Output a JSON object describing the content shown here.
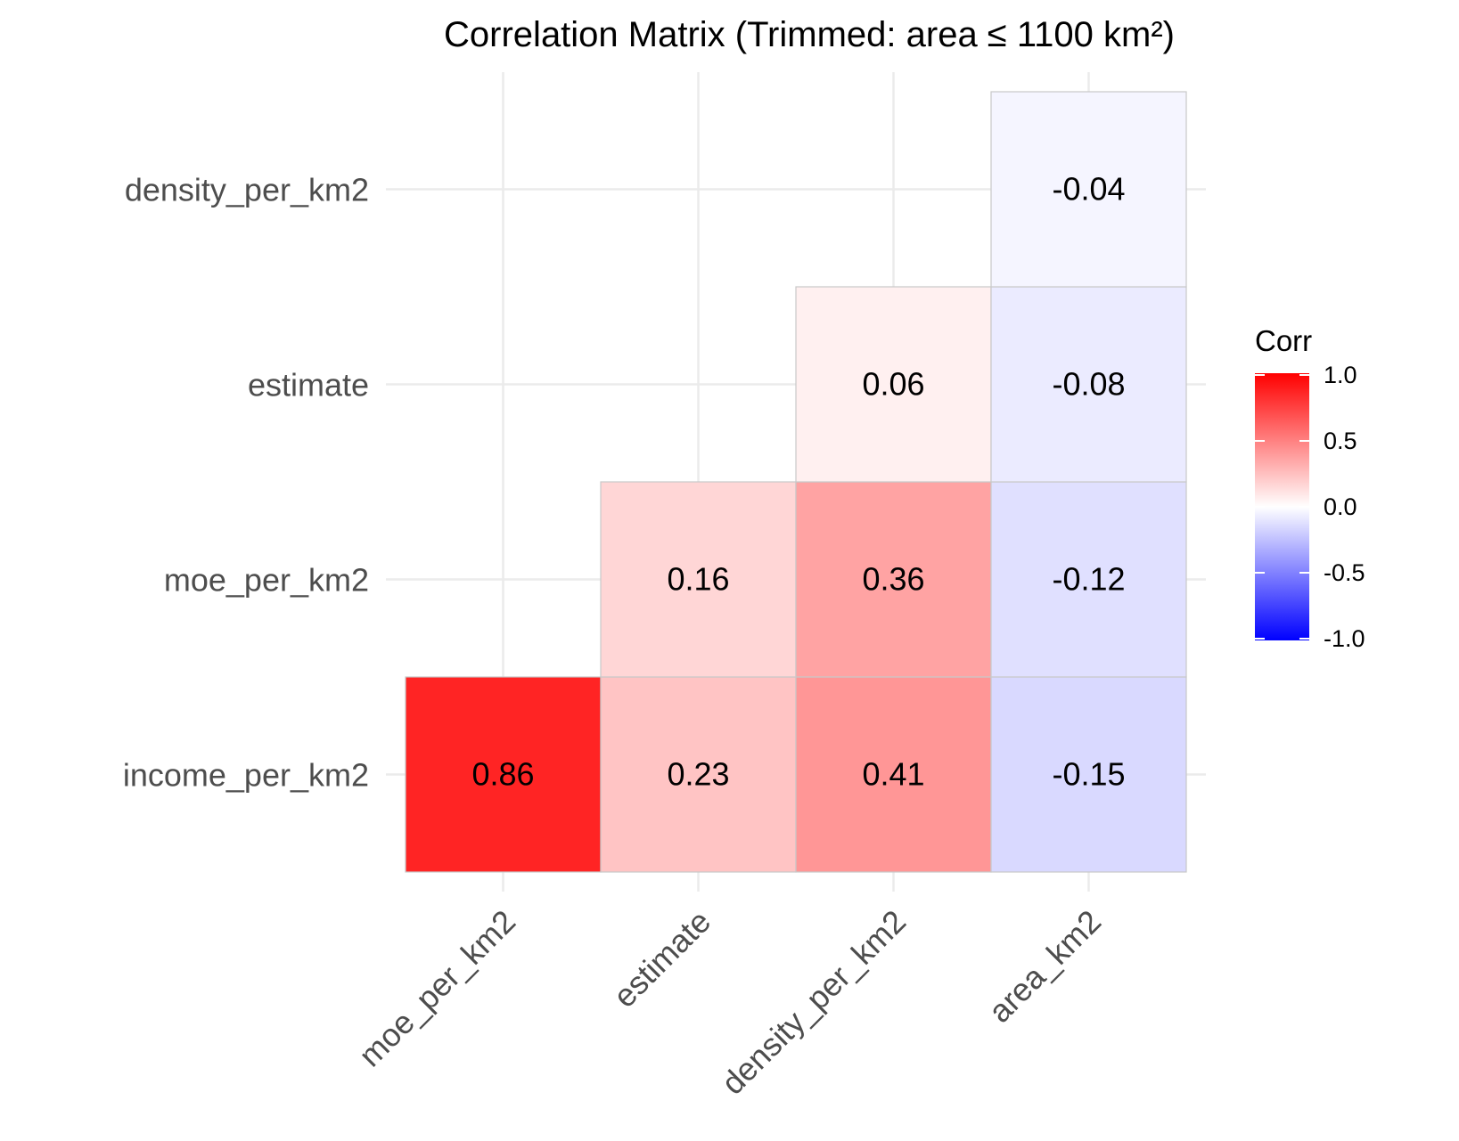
{
  "chart_data": {
    "type": "heatmap",
    "title": "Correlation Matrix (Trimmed: area ≤ 1100 km²)",
    "xlabel": "",
    "ylabel": "",
    "x_categories": [
      "moe_per_km2",
      "estimate",
      "density_per_km2",
      "area_km2"
    ],
    "y_categories": [
      "income_per_km2",
      "moe_per_km2",
      "estimate",
      "density_per_km2"
    ],
    "cells": [
      {
        "x": "moe_per_km2",
        "y": "income_per_km2",
        "value": 0.86
      },
      {
        "x": "estimate",
        "y": "income_per_km2",
        "value": 0.23
      },
      {
        "x": "density_per_km2",
        "y": "income_per_km2",
        "value": 0.41
      },
      {
        "x": "area_km2",
        "y": "income_per_km2",
        "value": -0.15
      },
      {
        "x": "estimate",
        "y": "moe_per_km2",
        "value": 0.16
      },
      {
        "x": "density_per_km2",
        "y": "moe_per_km2",
        "value": 0.36
      },
      {
        "x": "area_km2",
        "y": "moe_per_km2",
        "value": -0.12
      },
      {
        "x": "density_per_km2",
        "y": "estimate",
        "value": 0.06
      },
      {
        "x": "area_km2",
        "y": "estimate",
        "value": -0.08
      },
      {
        "x": "area_km2",
        "y": "density_per_km2",
        "value": -0.04
      }
    ],
    "color_scale": {
      "low": "#0000ff",
      "mid": "#ffffff",
      "high": "#ff0000",
      "limits": [
        -1,
        1
      ]
    },
    "legend": {
      "title": "Corr",
      "ticks": [
        "1.0",
        "0.5",
        "0.0",
        "-0.5",
        "-1.0"
      ],
      "position": "right"
    },
    "grid": true
  }
}
